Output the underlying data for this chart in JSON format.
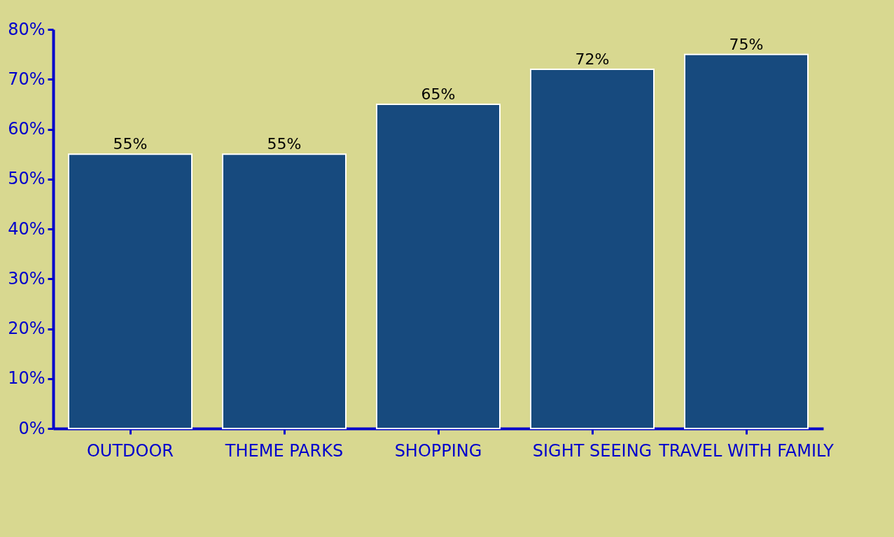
{
  "chart_data": {
    "type": "bar",
    "categories": [
      "OUTDOOR",
      "THEME PARKS",
      "SHOPPING",
      "SIGHT SEEING",
      "TRAVEL WITH FAMILY"
    ],
    "values": [
      55,
      55,
      65,
      72,
      75
    ],
    "value_labels": [
      "55%",
      "55%",
      "65%",
      "72%",
      "75%"
    ],
    "color": "#174a7e",
    "ylim": [
      0,
      80
    ],
    "yticks": [
      {
        "value": 0,
        "label": "0%"
      },
      {
        "value": 10,
        "label": "10%"
      },
      {
        "value": 20,
        "label": "20%"
      },
      {
        "value": 30,
        "label": "30%"
      },
      {
        "value": 40,
        "label": "40%"
      },
      {
        "value": 50,
        "label": "50%"
      },
      {
        "value": 60,
        "label": "60%"
      },
      {
        "value": 70,
        "label": "70%"
      },
      {
        "value": 80,
        "label": "80%"
      }
    ],
    "grid": false
  }
}
